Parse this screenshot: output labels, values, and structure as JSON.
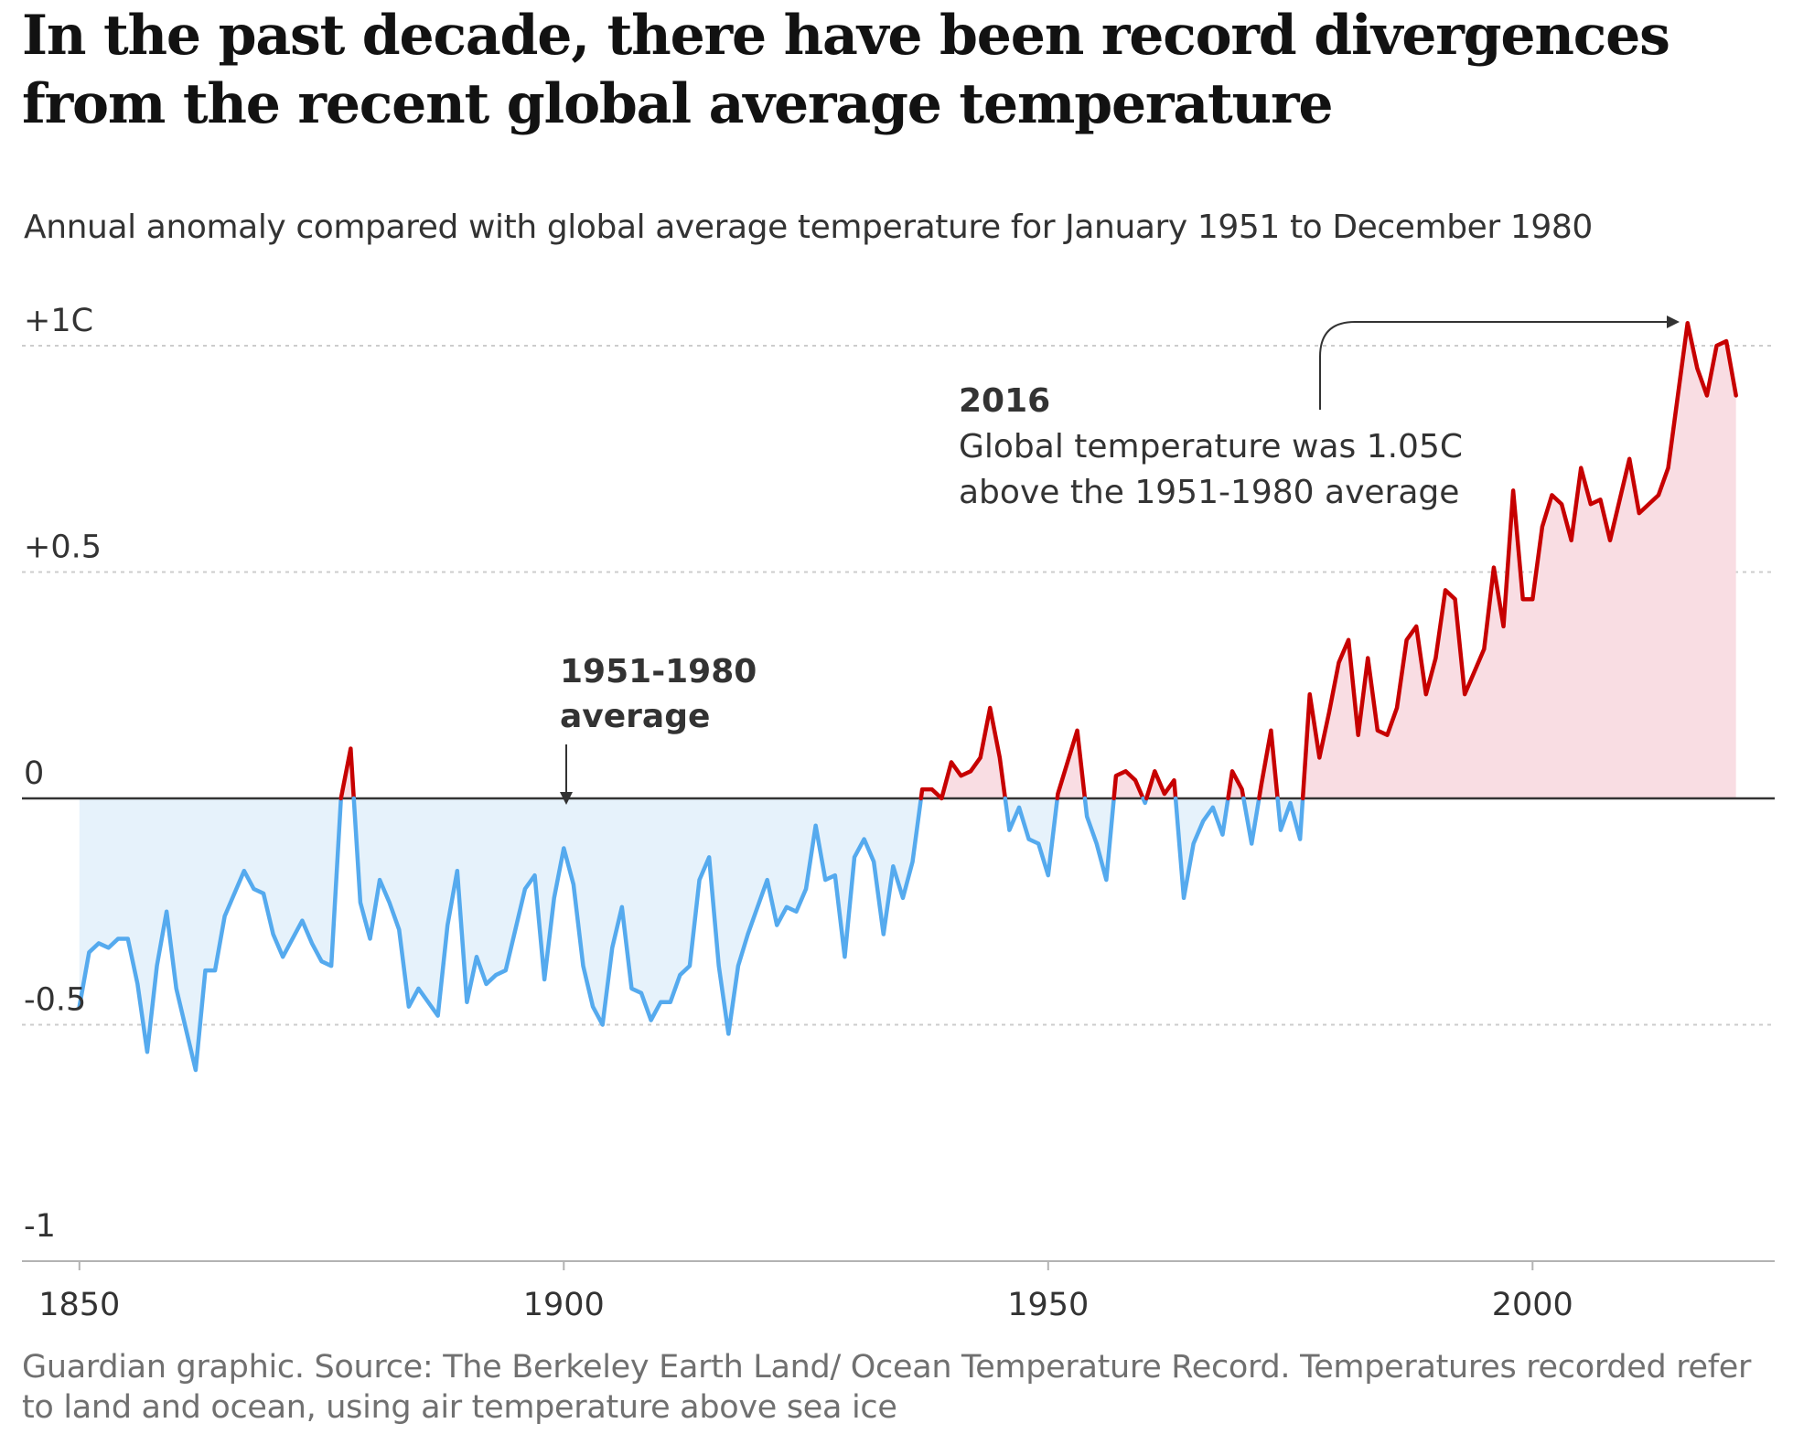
{
  "title": "In the past decade, there have been record divergences from the recent global average temperature",
  "subtitle": "Annual anomaly compared with global average temperature for January 1951 to December 1980",
  "source": "Guardian graphic. Source: The Berkeley Earth Land/ Ocean Temperature Record. Temperatures recorded refer to land and ocean, using air temperature above sea ice",
  "colors": {
    "above_line": "#c70000",
    "above_fill": "#f9dde3",
    "below_line": "#55aaee",
    "below_fill": "#e6f2fb",
    "zero_line": "#333333",
    "grid": "#cccccc"
  },
  "chart_data": {
    "type": "area",
    "xlabel": "",
    "ylabel": "",
    "xlim": [
      1845,
      2025
    ],
    "ylim": [
      -1,
      1
    ],
    "y_ticks": [
      1,
      0.5,
      0,
      -0.5,
      -1
    ],
    "y_tick_labels": [
      "+1C",
      "+0.5",
      "0",
      "-0.5",
      "-1"
    ],
    "x_ticks": [
      1850,
      1900,
      1950,
      2000
    ],
    "x_tick_labels": [
      "1850",
      "1900",
      "1950",
      "2000"
    ],
    "grid": "horizontal dotted",
    "baseline": 0,
    "x": [
      1850,
      1851,
      1852,
      1853,
      1854,
      1855,
      1856,
      1857,
      1858,
      1859,
      1860,
      1861,
      1862,
      1863,
      1864,
      1865,
      1866,
      1867,
      1868,
      1869,
      1870,
      1871,
      1872,
      1873,
      1874,
      1875,
      1876,
      1877,
      1878,
      1879,
      1880,
      1881,
      1882,
      1883,
      1884,
      1885,
      1886,
      1887,
      1888,
      1889,
      1890,
      1891,
      1892,
      1893,
      1894,
      1895,
      1896,
      1897,
      1898,
      1899,
      1900,
      1901,
      1902,
      1903,
      1904,
      1905,
      1906,
      1907,
      1908,
      1909,
      1910,
      1911,
      1912,
      1913,
      1914,
      1915,
      1916,
      1917,
      1918,
      1919,
      1920,
      1921,
      1922,
      1923,
      1924,
      1925,
      1926,
      1927,
      1928,
      1929,
      1930,
      1931,
      1932,
      1933,
      1934,
      1935,
      1936,
      1937,
      1938,
      1939,
      1940,
      1941,
      1942,
      1943,
      1944,
      1945,
      1946,
      1947,
      1948,
      1949,
      1950,
      1951,
      1952,
      1953,
      1954,
      1955,
      1956,
      1957,
      1958,
      1959,
      1960,
      1961,
      1962,
      1963,
      1964,
      1965,
      1966,
      1967,
      1968,
      1969,
      1970,
      1971,
      1972,
      1973,
      1974,
      1975,
      1976,
      1977,
      1978,
      1979,
      1980,
      1981,
      1982,
      1983,
      1984,
      1985,
      1986,
      1987,
      1988,
      1989,
      1990,
      1991,
      1992,
      1993,
      1994,
      1995,
      1996,
      1997,
      1998,
      1999,
      2000,
      2001,
      2002,
      2003,
      2004,
      2005,
      2006,
      2007,
      2008,
      2009,
      2010,
      2011,
      2012,
      2013,
      2014,
      2015,
      2016,
      2017,
      2018,
      2019,
      2020,
      2021
    ],
    "series": [
      {
        "values": [
          -0.46,
          -0.34,
          -0.32,
          -0.33,
          -0.31,
          -0.31,
          -0.41,
          -0.56,
          -0.37,
          -0.25,
          -0.42,
          -0.51,
          -0.6,
          -0.38,
          -0.38,
          -0.26,
          -0.21,
          -0.16,
          -0.2,
          -0.21,
          -0.3,
          -0.35,
          -0.31,
          -0.27,
          -0.32,
          -0.36,
          -0.37,
          0.0,
          0.11,
          -0.23,
          -0.31,
          -0.18,
          -0.23,
          -0.29,
          -0.46,
          -0.42,
          -0.45,
          -0.48,
          -0.28,
          -0.16,
          -0.45,
          -0.35,
          -0.41,
          -0.39,
          -0.38,
          -0.29,
          -0.2,
          -0.17,
          -0.4,
          -0.22,
          -0.11,
          -0.19,
          -0.37,
          -0.46,
          -0.5,
          -0.33,
          -0.24,
          -0.42,
          -0.43,
          -0.49,
          -0.45,
          -0.45,
          -0.39,
          -0.37,
          -0.18,
          -0.13,
          -0.37,
          -0.52,
          -0.37,
          -0.3,
          -0.24,
          -0.18,
          -0.28,
          -0.24,
          -0.25,
          -0.2,
          -0.06,
          -0.18,
          -0.17,
          -0.35,
          -0.13,
          -0.09,
          -0.14,
          -0.3,
          -0.15,
          -0.22,
          -0.14,
          0.02,
          0.02,
          0.0,
          0.08,
          0.05,
          0.06,
          0.09,
          0.2,
          0.09,
          -0.07,
          -0.02,
          -0.09,
          -0.1,
          -0.17,
          0.01,
          0.08,
          0.15,
          -0.04,
          -0.1,
          -0.18,
          0.05,
          0.06,
          0.04,
          -0.01,
          0.06,
          0.01,
          0.04,
          -0.22,
          -0.1,
          -0.05,
          -0.02,
          -0.08,
          0.06,
          0.02,
          -0.1,
          0.03,
          0.15,
          -0.07,
          -0.01,
          -0.09,
          0.23,
          0.09,
          0.19,
          0.3,
          0.35,
          0.14,
          0.31,
          0.15,
          0.14,
          0.2,
          0.35,
          0.38,
          0.23,
          0.31,
          0.46,
          0.44,
          0.23,
          0.28,
          0.33,
          0.51,
          0.38,
          0.68,
          0.44,
          0.44,
          0.6,
          0.67,
          0.65,
          0.57,
          0.73,
          0.65,
          0.66,
          0.57,
          0.66,
          0.75,
          0.63,
          0.65,
          0.67,
          0.73,
          0.89,
          1.05,
          0.95,
          0.89,
          1.0,
          1.01,
          0.89
        ]
      }
    ],
    "annotations": [
      {
        "label_line1": "1951-1980",
        "label_line2": "average",
        "x": 1900,
        "y": 0
      },
      {
        "title": "2016",
        "line1": "Global temperature was 1.05C",
        "line2": "above the 1951-1980 average",
        "x": 2016,
        "y": 1.05
      }
    ]
  }
}
